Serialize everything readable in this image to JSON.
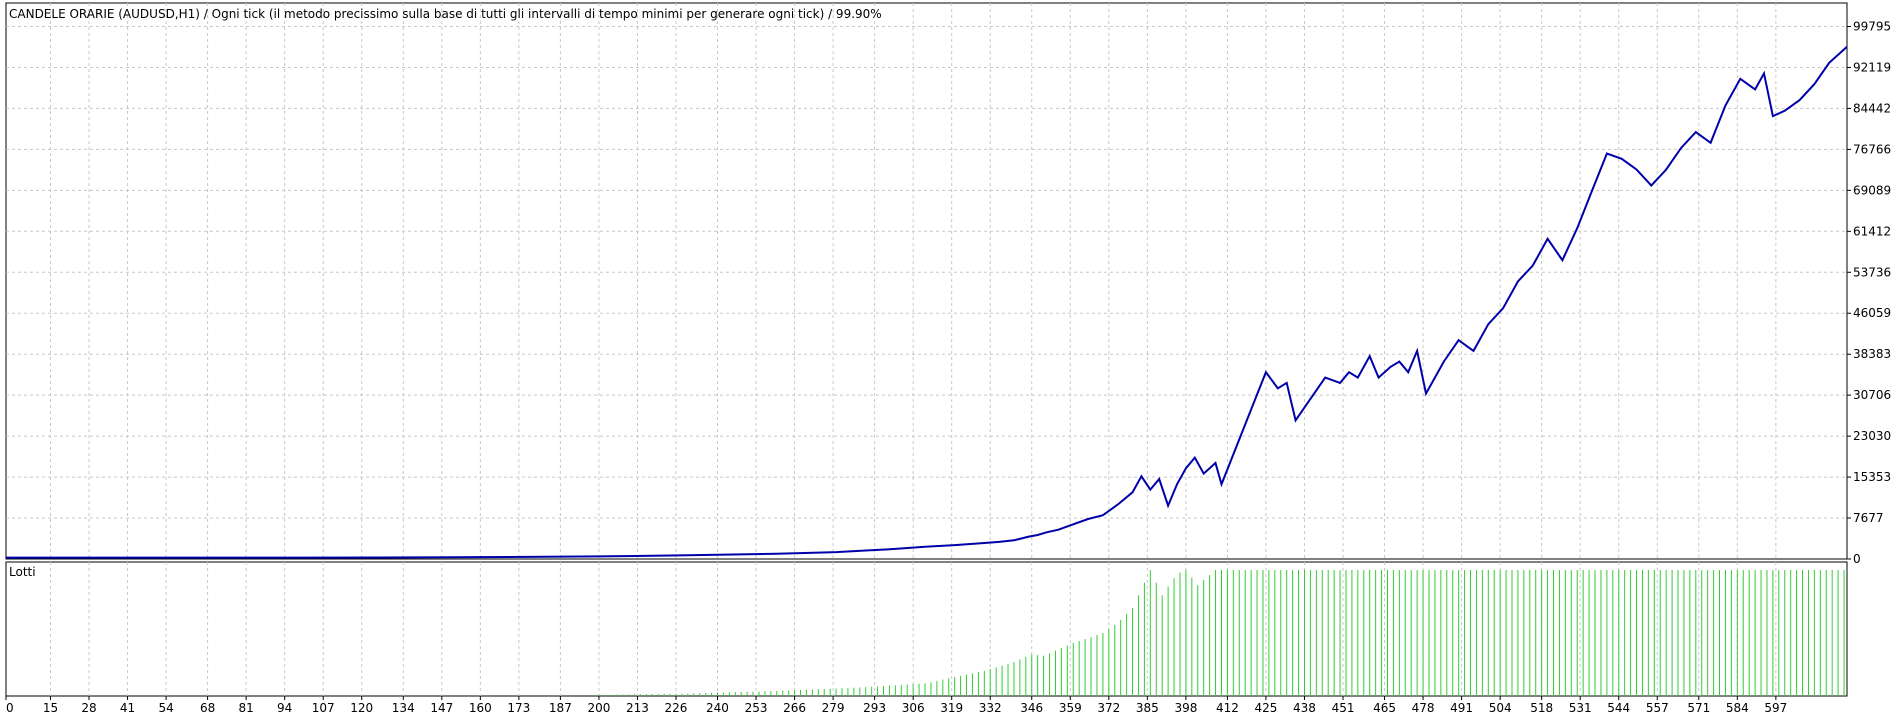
{
  "chart_data": {
    "type": "line",
    "title": "CANDELE ORARIE (AUDUSD,H1) / Ogni tick (il metodo precissimo sulla base di tutti gli intervalli di tempo minimi per generare ogni tick) / 99.90%",
    "xlabel": "",
    "ylabel": "",
    "x_ticks": [
      "0",
      "15",
      "28",
      "41",
      "54",
      "68",
      "81",
      "94",
      "107",
      "120",
      "134",
      "147",
      "160",
      "173",
      "187",
      "200",
      "213",
      "226",
      "240",
      "253",
      "266",
      "279",
      "293",
      "306",
      "319",
      "332",
      "346",
      "359",
      "372",
      "385",
      "398",
      "412",
      "425",
      "438",
      "451",
      "465",
      "478",
      "491",
      "504",
      "518",
      "531",
      "544",
      "557",
      "571",
      "584",
      "597"
    ],
    "y_ticks": [
      "99795",
      "92119",
      "84442",
      "76766",
      "69089",
      "61412",
      "53736",
      "46059",
      "38383",
      "30706",
      "23030",
      "15353",
      "7677",
      "0"
    ],
    "ylim": [
      0,
      104200
    ],
    "xlim": [
      0,
      621
    ],
    "grid": true,
    "balance_series": {
      "name": "",
      "color": "#0000aa",
      "x": [
        0,
        100,
        150,
        200,
        230,
        260,
        280,
        290,
        300,
        310,
        320,
        330,
        335,
        340,
        345,
        348,
        351,
        355,
        360,
        365,
        370,
        375,
        380,
        383,
        386,
        389,
        392,
        395,
        398,
        401,
        404,
        408,
        410,
        425,
        429,
        432,
        435,
        440,
        445,
        450,
        453,
        456,
        460,
        463,
        467,
        470,
        473,
        476,
        479,
        482,
        485,
        490,
        495,
        500,
        505,
        510,
        515,
        520,
        525,
        530,
        535,
        540,
        545,
        550,
        555,
        560,
        565,
        570,
        575,
        580,
        585,
        590,
        593,
        596,
        600,
        605,
        610,
        615,
        621
      ],
      "y": [
        260,
        260,
        310,
        480,
        700,
        1000,
        1300,
        1600,
        1900,
        2300,
        2600,
        3000,
        3200,
        3500,
        4200,
        4500,
        5000,
        5500,
        6500,
        7500,
        8200,
        10200,
        12500,
        15500,
        13000,
        15000,
        10000,
        14000,
        17000,
        19000,
        16000,
        18000,
        14000,
        35000,
        32000,
        33000,
        26000,
        30000,
        34000,
        33000,
        35000,
        34000,
        38000,
        34000,
        36000,
        37000,
        35000,
        39000,
        31000,
        34000,
        37000,
        41000,
        39000,
        44000,
        47000,
        52000,
        55000,
        60000,
        56000,
        62000,
        69000,
        76000,
        75000,
        73000,
        70000,
        73000,
        77000,
        80000,
        78000,
        85000,
        90000,
        88000,
        91000,
        83000,
        84000,
        86000,
        89000,
        93000,
        96000
      ]
    },
    "lots_panel": {
      "label": "Lotti",
      "color": "#33cc33",
      "bar_start_x": 200,
      "bar_end_x": 621,
      "bar_step": 2,
      "max_value": 1.0,
      "profile_x": [
        200,
        230,
        260,
        290,
        310,
        320,
        330,
        340,
        346,
        350,
        360,
        370,
        375,
        380,
        383,
        386,
        390,
        395,
        398,
        402,
        408,
        412,
        621
      ],
      "profile_y": [
        0.01,
        0.02,
        0.04,
        0.07,
        0.1,
        0.15,
        0.2,
        0.27,
        0.33,
        0.32,
        0.42,
        0.5,
        0.58,
        0.7,
        0.85,
        1.0,
        0.8,
        0.97,
        1.0,
        0.88,
        1.0,
        1.0,
        1.0
      ]
    }
  }
}
